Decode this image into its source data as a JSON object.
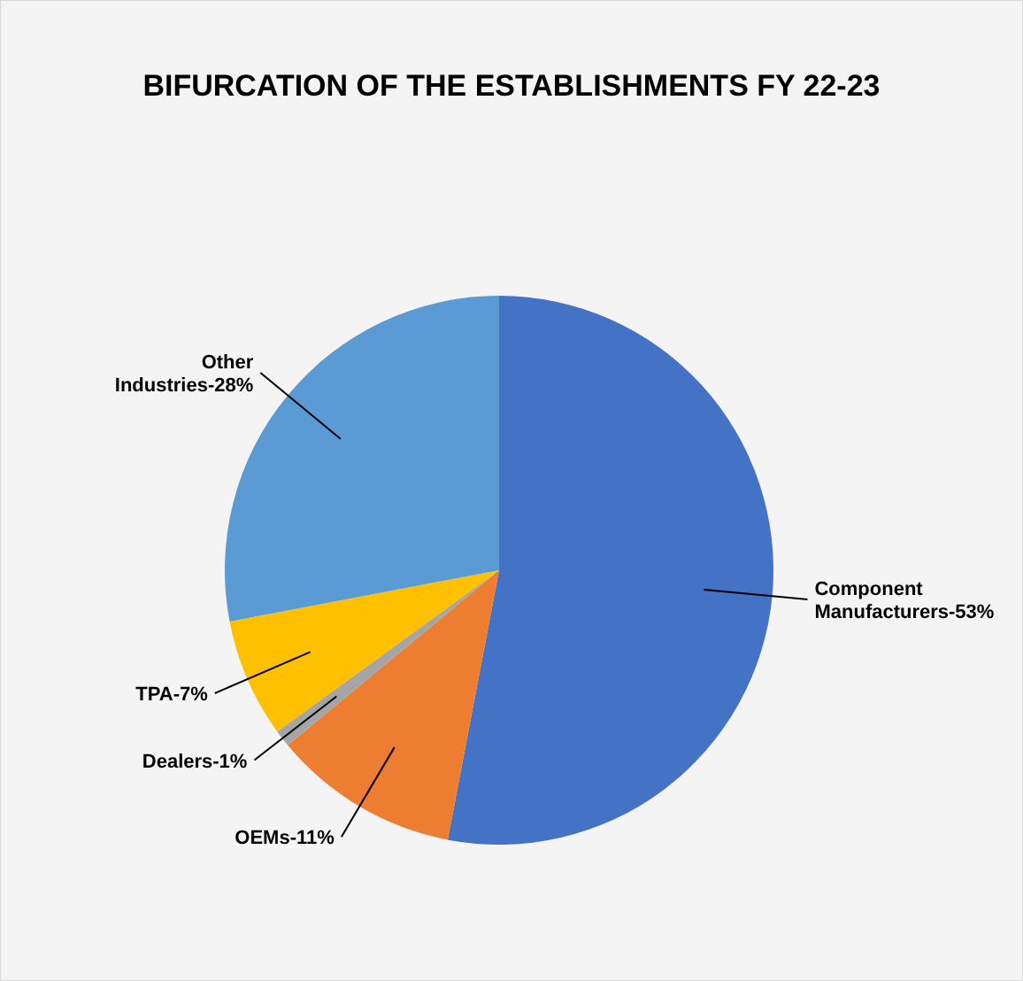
{
  "chart_data": {
    "type": "pie",
    "title": "BIFURCATION OF THE ESTABLISHMENTS FY 22-23",
    "categories": [
      "Component Manufacturers-53%",
      "OEMs-11%",
      "Dealers-1%",
      "TPA-7%",
      "Other Industries-28%"
    ],
    "values": [
      53,
      11,
      1,
      7,
      28
    ],
    "colors": [
      "#4472c4",
      "#ed7d31",
      "#a5a5a5",
      "#ffc000",
      "#5b9bd5"
    ]
  }
}
